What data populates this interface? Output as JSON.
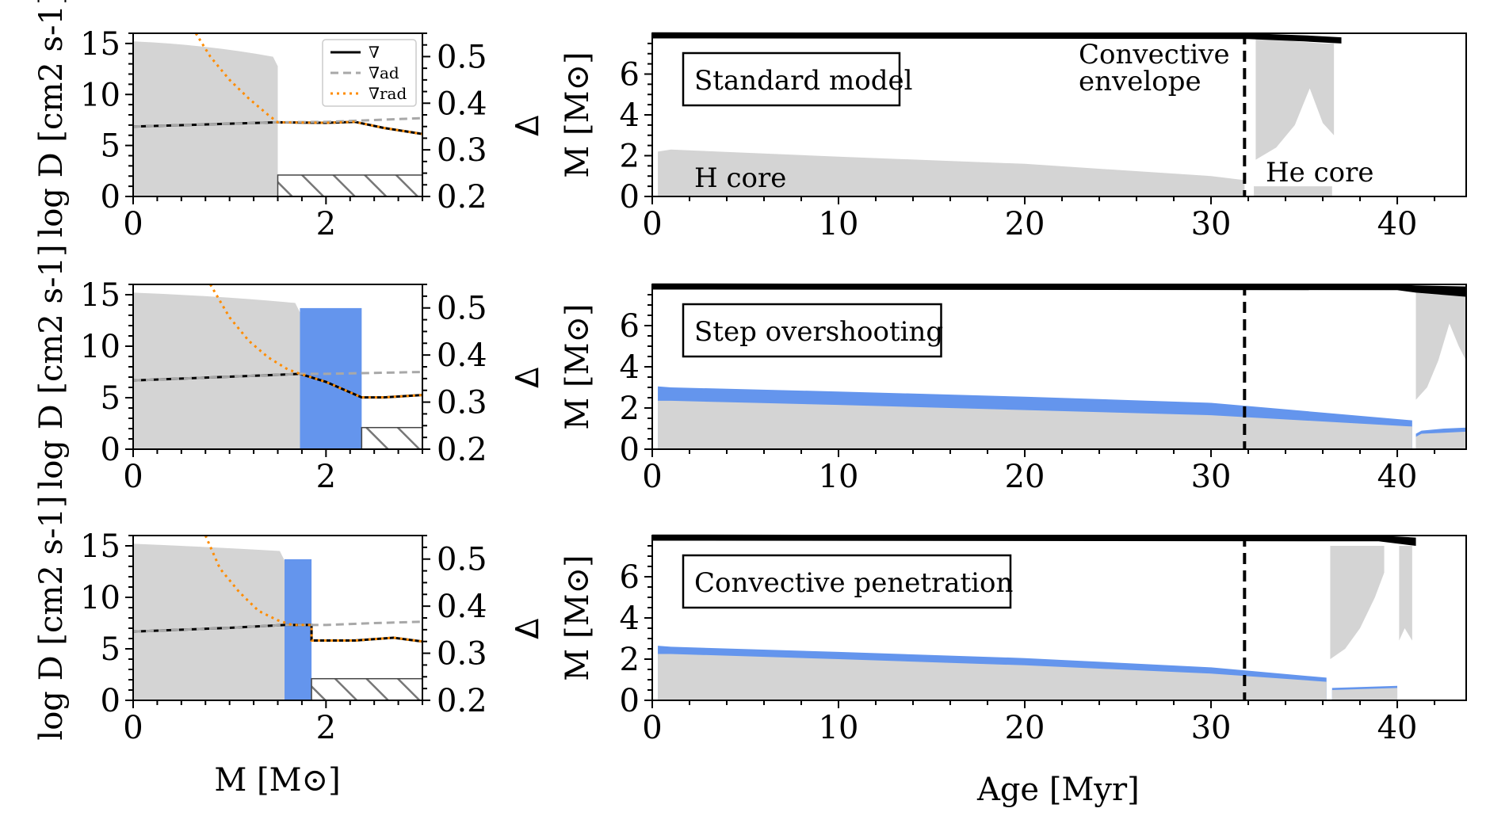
{
  "colors": {
    "gray": "#d4d4d4",
    "blue": "#6495ed",
    "orange": "#ff8c00",
    "grad_ad": "#a8a8a8",
    "black": "#000000",
    "hatch": "#777777"
  },
  "chart_data": [
    {
      "type": "line",
      "panel": "left-standard",
      "xlim": [
        0,
        3
      ],
      "ylim": [
        0,
        16
      ],
      "y2lim": [
        0.2,
        0.55
      ],
      "xticks": [
        0,
        2
      ],
      "yticks": [
        0,
        5,
        10,
        15
      ],
      "y2ticks": [
        0.2,
        0.3,
        0.4,
        0.5
      ],
      "xtick_labels": [
        "0",
        "2"
      ],
      "ytick_labels": [
        "0",
        "5",
        "10",
        "15"
      ],
      "y2tick_labels": [
        "0.2",
        "0.3",
        "0.4",
        "0.5"
      ],
      "ylabel": "log D [cm2 s-1]",
      "y2label": "∇",
      "xlabel": "",
      "legend": [
        "∇",
        "∇ad",
        "∇rad"
      ],
      "legend_sub": [
        "",
        "ad",
        "rad"
      ],
      "gray_region": {
        "x": [
          0,
          1.5
        ],
        "y": [
          15.2,
          13.7
        ]
      },
      "blue_region": null,
      "hatch_region": [
        1.5,
        3
      ],
      "grad": {
        "x": [
          0,
          0.5,
          1.0,
          1.5,
          2.0,
          2.3,
          2.6,
          3.0
        ],
        "y": [
          0.35,
          0.353,
          0.356,
          0.359,
          0.358,
          0.36,
          0.347,
          0.334
        ]
      },
      "grad_ad": {
        "x": [
          0,
          0.5,
          1.0,
          1.5,
          2.0,
          2.5,
          3.0
        ],
        "y": [
          0.35,
          0.353,
          0.356,
          0.359,
          0.36,
          0.364,
          0.368
        ]
      },
      "grad_rad": {
        "x": [
          0.65,
          0.8,
          1.0,
          1.2,
          1.4,
          1.5,
          2.0,
          2.3,
          2.6,
          3.0
        ],
        "y": [
          0.55,
          0.5,
          0.45,
          0.41,
          0.375,
          0.359,
          0.358,
          0.36,
          0.347,
          0.334
        ]
      }
    },
    {
      "type": "line",
      "panel": "left-step",
      "xlim": [
        0,
        3
      ],
      "ylim": [
        0,
        16
      ],
      "y2lim": [
        0.2,
        0.55
      ],
      "xticks": [
        0,
        2
      ],
      "yticks": [
        0,
        5,
        10,
        15
      ],
      "y2ticks": [
        0.2,
        0.3,
        0.4,
        0.5
      ],
      "xtick_labels": [
        "0",
        "2"
      ],
      "ytick_labels": [
        "0",
        "5",
        "10",
        "15"
      ],
      "y2tick_labels": [
        "0.2",
        "0.3",
        "0.4",
        "0.5"
      ],
      "ylabel": "log D [cm2 s-1]",
      "y2label": "∇",
      "xlabel": "",
      "gray_region": {
        "x": [
          0,
          1.73
        ],
        "y": [
          15.2,
          14.2
        ]
      },
      "blue_region": {
        "x": [
          1.73,
          2.37
        ],
        "y": 13.7
      },
      "hatch_region": [
        2.37,
        3
      ],
      "grad": {
        "x": [
          0,
          0.5,
          1.0,
          1.5,
          1.73,
          2.0,
          2.37,
          2.6,
          3.0
        ],
        "y": [
          0.346,
          0.35,
          0.354,
          0.358,
          0.36,
          0.343,
          0.31,
          0.31,
          0.315
        ]
      },
      "grad_ad": {
        "x": [
          0,
          0.5,
          1.0,
          1.5,
          1.73,
          2.0,
          2.5,
          3.0
        ],
        "y": [
          0.346,
          0.35,
          0.354,
          0.358,
          0.36,
          0.36,
          0.362,
          0.364
        ]
      },
      "grad_rad": {
        "x": [
          0.8,
          1.0,
          1.2,
          1.4,
          1.6,
          1.73,
          2.0,
          2.37,
          2.6,
          3.0
        ],
        "y": [
          0.55,
          0.48,
          0.43,
          0.395,
          0.37,
          0.36,
          0.343,
          0.31,
          0.31,
          0.315
        ]
      }
    },
    {
      "type": "line",
      "panel": "left-penetration",
      "xlim": [
        0,
        3
      ],
      "ylim": [
        0,
        16
      ],
      "y2lim": [
        0.2,
        0.55
      ],
      "xticks": [
        0,
        2
      ],
      "yticks": [
        0,
        5,
        10,
        15
      ],
      "y2ticks": [
        0.2,
        0.3,
        0.4,
        0.5
      ],
      "xtick_labels": [
        "0",
        "2"
      ],
      "ytick_labels": [
        "0",
        "5",
        "10",
        "15"
      ],
      "y2tick_labels": [
        "0.2",
        "0.3",
        "0.4",
        "0.5"
      ],
      "ylabel": "log D [cm2 s-1]",
      "y2label": "∇",
      "xlabel": "M [M⊙]",
      "gray_region": {
        "x": [
          0,
          1.57
        ],
        "y": [
          15.2,
          14.5
        ]
      },
      "blue_region": {
        "x": [
          1.57,
          1.85
        ],
        "y": 13.7
      },
      "hatch_region": [
        1.85,
        3
      ],
      "grad": {
        "x": [
          0,
          0.5,
          1.0,
          1.57,
          1.85,
          1.85,
          2.3,
          2.7,
          3.0
        ],
        "y": [
          0.346,
          0.35,
          0.354,
          0.36,
          0.36,
          0.327,
          0.327,
          0.333,
          0.325
        ]
      },
      "grad_ad": {
        "x": [
          0,
          0.5,
          1.0,
          1.57,
          2.0,
          2.5,
          3.0
        ],
        "y": [
          0.346,
          0.35,
          0.354,
          0.36,
          0.36,
          0.364,
          0.367
        ]
      },
      "grad_rad": {
        "x": [
          0.75,
          0.9,
          1.1,
          1.3,
          1.5,
          1.65,
          1.85,
          1.85,
          2.3,
          2.7,
          3.0
        ],
        "y": [
          0.55,
          0.48,
          0.43,
          0.39,
          0.37,
          0.36,
          0.36,
          0.327,
          0.327,
          0.333,
          0.325
        ]
      }
    },
    {
      "type": "area",
      "panel": "right-standard",
      "xlim": [
        0,
        43.7
      ],
      "ylim": [
        0,
        8
      ],
      "xticks": [
        0,
        10,
        20,
        30,
        40
      ],
      "yticks": [
        0,
        2,
        4,
        6
      ],
      "xtick_labels": [
        "0",
        "10",
        "20",
        "30",
        "40"
      ],
      "ytick_labels": [
        "0",
        "2",
        "4",
        "6"
      ],
      "ylabel": "M [M⊙]",
      "xlabel": "",
      "label": "Standard model",
      "vline": 31.8,
      "h_core": {
        "age": [
          0.3,
          1,
          10,
          20,
          30,
          31.8
        ],
        "top": [
          2.2,
          2.3,
          1.95,
          1.6,
          1.0,
          0.8
        ]
      },
      "h_overshoot": null,
      "he_core": {
        "age": [
          32.3,
          36.5
        ],
        "top": [
          0.5,
          0.5
        ]
      },
      "he_overshoot": null,
      "envelope": {
        "age": [
          32.4,
          33.5,
          34.5,
          35.3,
          36.0,
          36.6
        ],
        "bottom": [
          1.8,
          2.4,
          3.5,
          5.3,
          3.6,
          3.0
        ],
        "top": [
          7.85,
          7.7,
          7.6,
          7.55,
          7.5,
          7.5
        ]
      },
      "envelope2": null,
      "mass_top": {
        "age": [
          0,
          32,
          35,
          37
        ],
        "top": [
          8.05,
          8.0,
          7.9,
          7.8
        ],
        "bottom": [
          7.75,
          7.72,
          7.6,
          7.5
        ]
      },
      "annotations": [
        "Convective envelope",
        "H core",
        "He core"
      ],
      "annotation_lines": [
        "Convective",
        "envelope"
      ]
    },
    {
      "type": "area",
      "panel": "right-step",
      "xlim": [
        0,
        43.7
      ],
      "ylim": [
        0,
        8
      ],
      "xticks": [
        0,
        10,
        20,
        30,
        40
      ],
      "yticks": [
        0,
        2,
        4,
        6
      ],
      "xtick_labels": [
        "0",
        "10",
        "20",
        "30",
        "40"
      ],
      "ytick_labels": [
        "0",
        "2",
        "4",
        "6"
      ],
      "ylabel": "M [M⊙]",
      "xlabel": "",
      "label": "Step overshooting",
      "vline": 31.8,
      "h_core": {
        "age": [
          0.3,
          1,
          10,
          20,
          30,
          40.8
        ],
        "top": [
          2.35,
          2.35,
          2.15,
          1.9,
          1.65,
          1.1
        ]
      },
      "h_overshoot": {
        "age": [
          0.3,
          1,
          10,
          20,
          30,
          40.8
        ],
        "top": [
          3.05,
          3.0,
          2.8,
          2.55,
          2.25,
          1.4
        ]
      },
      "he_core": {
        "age": [
          41.0,
          41.3,
          42.5,
          43.7
        ],
        "top": [
          0.6,
          0.75,
          0.8,
          0.85
        ]
      },
      "he_overshoot": {
        "age": [
          41.0,
          41.3,
          42.5,
          43.7
        ],
        "top": [
          0.75,
          0.9,
          1.0,
          1.05
        ]
      },
      "envelope": {
        "age": [
          41.0,
          41.6,
          42.2,
          42.8,
          43.3,
          43.7
        ],
        "bottom": [
          2.4,
          3.0,
          4.3,
          6.1,
          5.0,
          4.3
        ],
        "top": [
          7.6,
          7.55,
          7.5,
          7.5,
          7.45,
          7.4
        ]
      },
      "envelope2": null,
      "mass_top": {
        "age": [
          0,
          40,
          41,
          43.7
        ],
        "top": [
          8.05,
          8.0,
          7.95,
          7.9
        ],
        "bottom": [
          7.75,
          7.72,
          7.6,
          7.4
        ]
      },
      "annotations": []
    },
    {
      "type": "area",
      "panel": "right-penetration",
      "xlim": [
        0,
        43.7
      ],
      "ylim": [
        0,
        8
      ],
      "xticks": [
        0,
        10,
        20,
        30,
        40
      ],
      "yticks": [
        0,
        2,
        4,
        6
      ],
      "xtick_labels": [
        "0",
        "10",
        "20",
        "30",
        "40"
      ],
      "ytick_labels": [
        "0",
        "2",
        "4",
        "6"
      ],
      "ylabel": "M [M⊙]",
      "xlabel": "Age [Myr]",
      "label": "Convective penetration",
      "vline": 31.8,
      "h_core": {
        "age": [
          0.3,
          1,
          10,
          20,
          30,
          36.2
        ],
        "top": [
          2.25,
          2.25,
          2.0,
          1.7,
          1.3,
          0.9
        ]
      },
      "h_overshoot": {
        "age": [
          0.3,
          1,
          10,
          20,
          30,
          36.2
        ],
        "top": [
          2.65,
          2.6,
          2.35,
          2.05,
          1.6,
          1.1
        ]
      },
      "he_core": {
        "age": [
          36.5,
          40.0
        ],
        "top": [
          0.5,
          0.6
        ]
      },
      "he_overshoot": {
        "age": [
          36.5,
          40.0
        ],
        "top": [
          0.6,
          0.7
        ]
      },
      "envelope": {
        "age": [
          36.4,
          37.2,
          38.0,
          38.8,
          39.3
        ],
        "bottom": [
          2.0,
          2.5,
          3.5,
          5.0,
          6.2
        ],
        "top": [
          7.5,
          7.5,
          7.5,
          7.5,
          7.5
        ]
      },
      "envelope2": {
        "age": [
          40.1,
          40.4,
          40.8
        ],
        "bottom": [
          2.9,
          3.5,
          2.9
        ],
        "top": [
          7.5,
          7.5,
          7.5
        ]
      },
      "mass_top": {
        "age": [
          0,
          39,
          41
        ],
        "top": [
          8.05,
          8.0,
          7.9
        ],
        "bottom": [
          7.75,
          7.72,
          7.5
        ]
      },
      "annotations": []
    }
  ]
}
